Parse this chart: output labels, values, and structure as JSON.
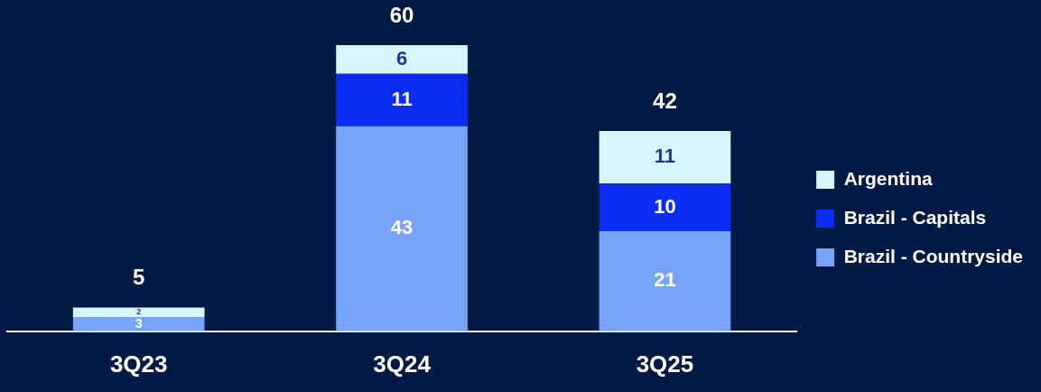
{
  "chart_data": {
    "type": "bar",
    "stacked": true,
    "data_labels": true,
    "legend": "right",
    "tick_labels": "x",
    "categories": [
      "3Q23",
      "3Q24",
      "3Q25"
    ],
    "series": [
      {
        "name": "Brazil - Countryside",
        "color": "#77a3fb",
        "values": [
          3,
          43,
          21
        ]
      },
      {
        "name": "Brazil - Capitals",
        "color": "#0a2cf5",
        "values": [
          null,
          11,
          10
        ]
      },
      {
        "name": "Argentina",
        "color": "#d6f5fc",
        "values": [
          2,
          6,
          11
        ]
      }
    ],
    "totals": [
      "5",
      "60",
      "42"
    ]
  }
}
